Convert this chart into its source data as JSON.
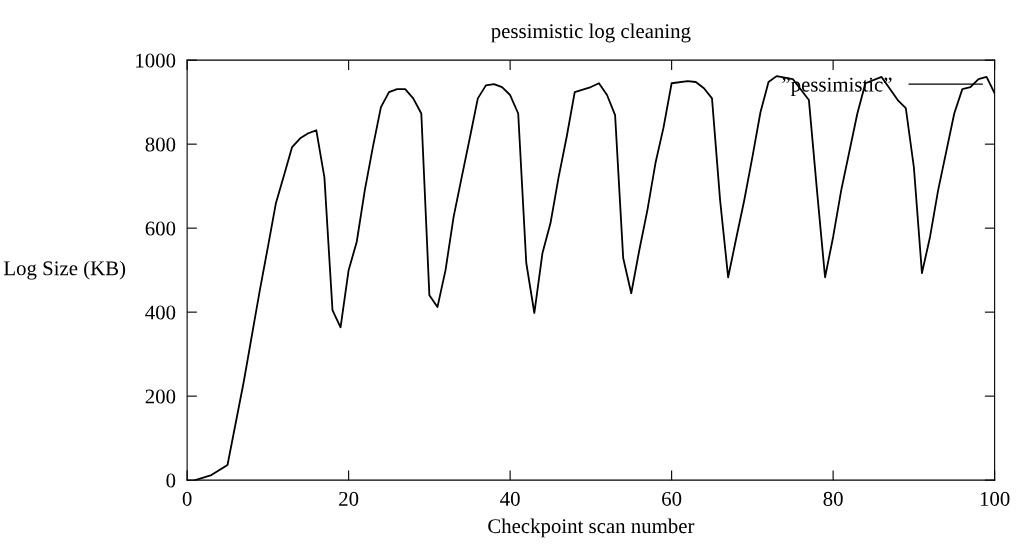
{
  "chart_data": {
    "type": "line",
    "title": "pessimistic log cleaning",
    "xlabel": "Checkpoint scan number",
    "ylabel": "Log Size (KB)",
    "x": [
      1,
      3,
      5,
      7,
      9,
      10,
      11,
      12,
      13,
      14,
      15,
      16,
      17,
      18,
      19,
      20,
      21,
      22,
      23,
      24,
      25,
      26,
      27,
      28,
      29,
      30,
      31,
      32,
      33,
      34,
      35,
      36,
      37,
      38,
      39,
      40,
      41,
      42,
      43,
      44,
      45,
      46,
      47,
      48,
      50,
      51,
      52,
      53,
      54,
      55,
      56,
      57,
      58,
      59,
      60,
      62,
      63,
      64,
      65,
      66,
      67,
      68,
      69,
      70,
      71,
      72,
      73,
      75,
      77,
      78,
      79,
      80,
      81,
      83,
      84,
      86,
      88,
      89,
      90,
      91,
      92,
      93,
      95,
      96,
      97,
      98,
      99,
      100
    ],
    "series": [
      {
        "name": "”pessimistic”",
        "color": "#000000",
        "values": [
          0,
          12,
          36,
          233,
          452,
          555,
          660,
          726,
          793,
          814,
          826,
          833,
          721,
          405,
          364,
          500,
          567,
          690,
          793,
          888,
          924,
          931,
          931,
          909,
          873,
          440,
          412,
          500,
          627,
          721,
          814,
          909,
          940,
          943,
          936,
          917,
          873,
          517,
          398,
          540,
          612,
          721,
          817,
          924,
          936,
          945,
          917,
          869,
          529,
          445,
          548,
          643,
          755,
          840,
          945,
          950,
          948,
          933,
          909,
          667,
          483,
          576,
          667,
          769,
          876,
          948,
          962,
          955,
          905,
          690,
          483,
          579,
          690,
          873,
          945,
          960,
          905,
          886,
          745,
          493,
          579,
          690,
          873,
          931,
          936,
          955,
          960,
          921
        ]
      }
    ],
    "xlim": [
      0,
      100
    ],
    "ylim": [
      0,
      1000
    ],
    "xticks": [
      0,
      20,
      40,
      60,
      80,
      100
    ],
    "yticks": [
      0,
      200,
      400,
      600,
      800,
      1000
    ],
    "grid": false,
    "legend": "top right",
    "marker": "none",
    "line_style": "solid"
  }
}
